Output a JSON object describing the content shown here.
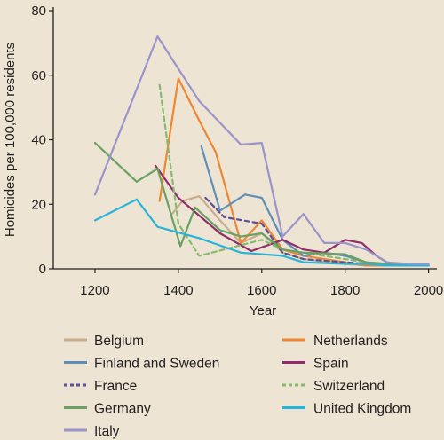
{
  "chart_data": {
    "type": "line",
    "xlabel": "Year",
    "ylabel": "Homicides per 100,000 residents",
    "xlim": [
      1100,
      2020
    ],
    "ylim": [
      0,
      80
    ],
    "xticks": [
      1200,
      1400,
      1600,
      1800,
      2000
    ],
    "yticks": [
      0,
      20,
      40,
      60,
      80
    ],
    "grid": false,
    "legend_position": "bottom",
    "series": [
      {
        "name": "Belgium",
        "color": "#c9ad8c",
        "dash": "solid",
        "points": [
          [
            1385,
            17
          ],
          [
            1410,
            21
          ],
          [
            1450,
            22.5
          ],
          [
            1500,
            15
          ],
          [
            1550,
            8
          ],
          [
            1600,
            11
          ],
          [
            1650,
            5
          ],
          [
            1700,
            3
          ],
          [
            1800,
            1.5
          ],
          [
            1850,
            1
          ],
          [
            1900,
            1
          ],
          [
            2000,
            1
          ]
        ]
      },
      {
        "name": "Netherlands",
        "color": "#ee8632",
        "dash": "solid",
        "points": [
          [
            1355,
            21
          ],
          [
            1400,
            59
          ],
          [
            1450,
            46
          ],
          [
            1490,
            36
          ],
          [
            1550,
            8
          ],
          [
            1600,
            15
          ],
          [
            1650,
            6
          ],
          [
            1700,
            4
          ],
          [
            1800,
            2
          ],
          [
            1850,
            1
          ],
          [
            1900,
            1
          ],
          [
            2000,
            1
          ]
        ]
      },
      {
        "name": "Finland and Sweden",
        "color": "#5f8fb5",
        "dash": "solid",
        "points": [
          [
            1455,
            38
          ],
          [
            1500,
            18
          ],
          [
            1560,
            23
          ],
          [
            1600,
            22
          ],
          [
            1650,
            9
          ],
          [
            1700,
            4
          ],
          [
            1750,
            5
          ],
          [
            1800,
            4
          ],
          [
            1850,
            2
          ],
          [
            1900,
            1.5
          ],
          [
            1950,
            1.5
          ],
          [
            2000,
            1.5
          ]
        ]
      },
      {
        "name": "Spain",
        "color": "#8f2d6a",
        "dash": "solid",
        "points": [
          [
            1345,
            32
          ],
          [
            1400,
            22
          ],
          [
            1500,
            11
          ],
          [
            1575,
            5.5
          ],
          [
            1650,
            9
          ],
          [
            1700,
            6
          ],
          [
            1750,
            5
          ],
          [
            1800,
            9
          ],
          [
            1840,
            8
          ],
          [
            1875,
            4
          ],
          [
            1900,
            2
          ],
          [
            1950,
            1
          ],
          [
            2000,
            1
          ]
        ]
      },
      {
        "name": "France",
        "color": "#5b4f96",
        "dash": "dashed",
        "points": [
          [
            1465,
            22
          ],
          [
            1510,
            16
          ],
          [
            1600,
            14
          ],
          [
            1650,
            5
          ],
          [
            1700,
            3
          ],
          [
            1800,
            2
          ],
          [
            1850,
            1.5
          ],
          [
            1900,
            1.5
          ],
          [
            2000,
            1
          ]
        ]
      },
      {
        "name": "Switzerland",
        "color": "#84bb6e",
        "dash": "dashed",
        "points": [
          [
            1355,
            57
          ],
          [
            1400,
            14
          ],
          [
            1450,
            4
          ],
          [
            1540,
            7
          ],
          [
            1600,
            9
          ],
          [
            1650,
            6
          ],
          [
            1700,
            5
          ],
          [
            1800,
            3
          ],
          [
            1850,
            2
          ],
          [
            1900,
            1.5
          ],
          [
            2000,
            1
          ]
        ]
      },
      {
        "name": "Germany",
        "color": "#6aa163",
        "dash": "solid",
        "points": [
          [
            1200,
            39
          ],
          [
            1300,
            27
          ],
          [
            1350,
            31
          ],
          [
            1405,
            7
          ],
          [
            1440,
            19
          ],
          [
            1500,
            12
          ],
          [
            1550,
            10
          ],
          [
            1600,
            11
          ],
          [
            1650,
            6
          ],
          [
            1700,
            5
          ],
          [
            1800,
            4.5
          ],
          [
            1850,
            2
          ],
          [
            1900,
            1.5
          ],
          [
            2000,
            1
          ]
        ]
      },
      {
        "name": "United Kingdom",
        "color": "#28b4d9",
        "dash": "solid",
        "points": [
          [
            1200,
            15
          ],
          [
            1300,
            21.5
          ],
          [
            1350,
            13
          ],
          [
            1450,
            9.5
          ],
          [
            1550,
            5
          ],
          [
            1650,
            4
          ],
          [
            1700,
            2
          ],
          [
            1800,
            1.5
          ],
          [
            1850,
            1.5
          ],
          [
            1900,
            1
          ],
          [
            2000,
            1
          ]
        ]
      },
      {
        "name": "Italy",
        "color": "#9b93c9",
        "dash": "solid",
        "points": [
          [
            1200,
            23
          ],
          [
            1350,
            72
          ],
          [
            1400,
            62
          ],
          [
            1450,
            52
          ],
          [
            1550,
            38.5
          ],
          [
            1600,
            39
          ],
          [
            1650,
            10
          ],
          [
            1700,
            17
          ],
          [
            1750,
            8
          ],
          [
            1800,
            8
          ],
          [
            1850,
            6
          ],
          [
            1900,
            2
          ],
          [
            1950,
            1.5
          ],
          [
            2000,
            1.5
          ]
        ]
      }
    ]
  }
}
